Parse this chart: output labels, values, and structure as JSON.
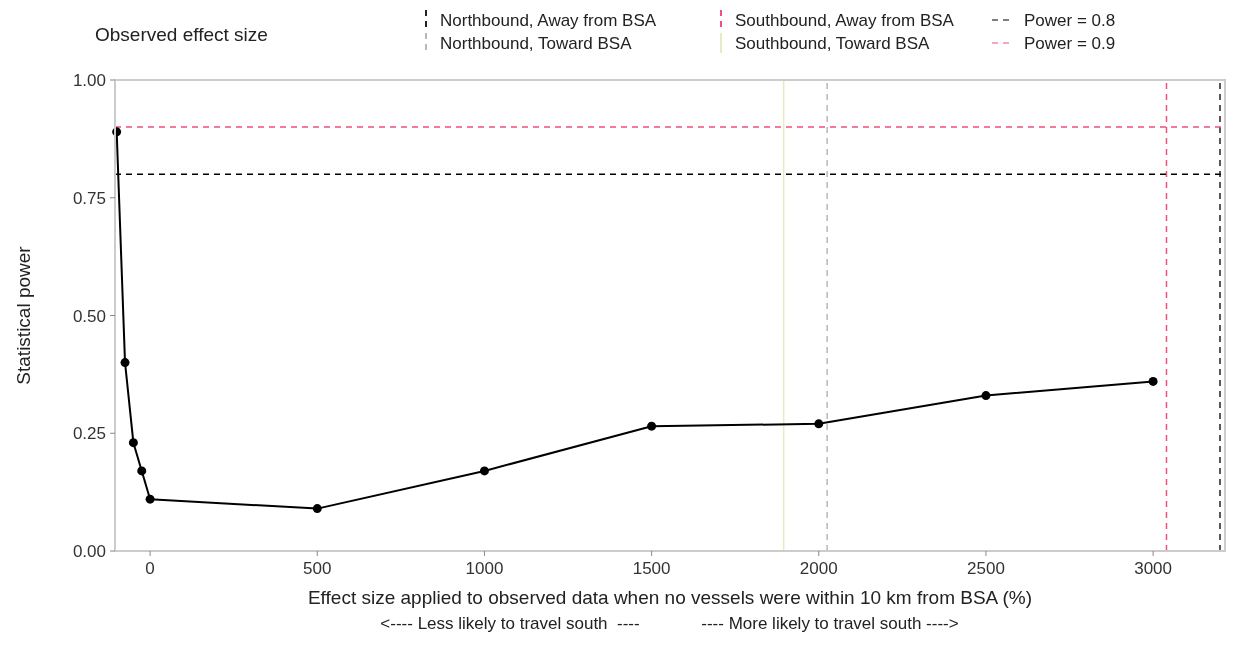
{
  "chart_data": {
    "type": "line",
    "xlabel": "Effect size applied to observed data when no vessels were within 10 km from BSA (%)",
    "ylabel": "Statistical power",
    "legend_title": "Observed effect size",
    "annotations": [
      "<---- Less likely to travel south  ----",
      "---- More likely to travel south ---->"
    ],
    "x": [
      -100,
      -75,
      -50,
      -25,
      0,
      500,
      1000,
      1500,
      2000,
      2500,
      3000
    ],
    "series": [
      {
        "color": "#000000",
        "values": [
          0.89,
          0.4,
          0.23,
          0.17,
          0.11,
          0.09,
          0.17,
          0.265,
          0.27,
          0.33,
          0.36
        ]
      }
    ],
    "xlim": [
      -105,
      3215
    ],
    "xticks": [
      0,
      500,
      1000,
      1500,
      2000,
      2500,
      3000
    ],
    "ylim": [
      0,
      1
    ],
    "yticks": [
      {
        "value": 0,
        "label": "0.00"
      },
      {
        "value": 0.25,
        "label": "0.25"
      },
      {
        "value": 0.5,
        "label": "0.50"
      },
      {
        "value": 0.75,
        "label": "0.75"
      },
      {
        "value": 1,
        "label": "1.00"
      }
    ],
    "ref_lines": [
      {
        "axis": "x",
        "value": 3200,
        "label": "Northbound, Away from BSA",
        "color": "#222222",
        "line_style": "dashed"
      },
      {
        "axis": "x",
        "value": 2025,
        "label": "Northbound, Toward BSA",
        "color": "#b8b8b8",
        "line_style": "dashed"
      },
      {
        "axis": "x",
        "value": 3040,
        "label": "Southbound, Away from BSA",
        "color": "#f0507a",
        "line_style": "dashed"
      },
      {
        "axis": "x",
        "value": 1895,
        "label": "Southbound, Toward BSA",
        "color": "#e6ebc4",
        "line_style": "solid"
      },
      {
        "axis": "y",
        "value": 0.8,
        "label": "Power = 0.8",
        "color": "#000000",
        "line_style": "dashed"
      },
      {
        "axis": "y",
        "value": 0.9,
        "label": "Power = 0.9",
        "color": "#f0507a",
        "line_style": "dashed"
      }
    ],
    "marker": "circle",
    "line_style": "solid",
    "grid": false,
    "legend": "top"
  }
}
